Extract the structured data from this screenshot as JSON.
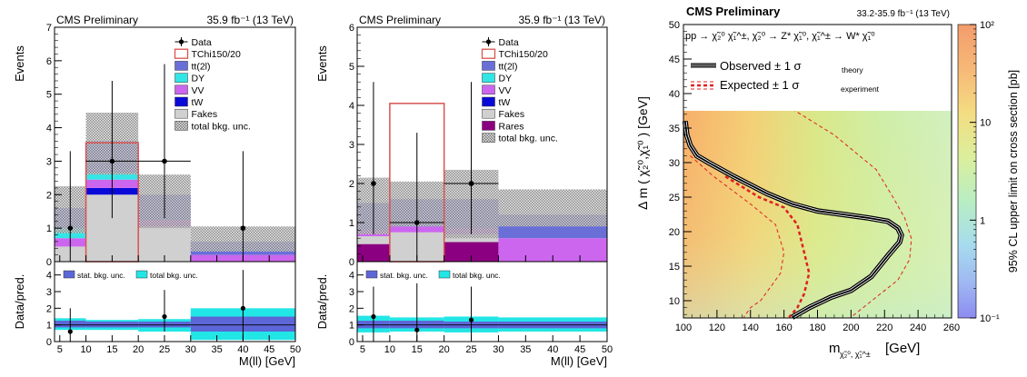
{
  "chart_data": [
    {
      "type": "bar",
      "panel": "left",
      "title": "CMS Preliminary",
      "lumi": "35.9 fb⁻¹ (13 TeV)",
      "xlabel": "M(ll) [GeV]",
      "ylabel": "Events",
      "ratio_ylabel": "Data/pred.",
      "xlim": [
        4,
        50
      ],
      "ylim": [
        0,
        7
      ],
      "ratio_ylim": [
        0,
        4.8
      ],
      "x_ticks": [
        5,
        10,
        15,
        20,
        25,
        30,
        35,
        40,
        45,
        50
      ],
      "y_ticks": [
        0,
        1,
        2,
        3,
        4,
        5,
        6,
        7
      ],
      "ratio_ticks": [
        0,
        1,
        2,
        3,
        4
      ],
      "bins": [
        [
          4,
          10
        ],
        [
          10,
          20
        ],
        [
          20,
          30
        ],
        [
          30,
          50
        ]
      ],
      "stack": [
        {
          "name": "Fakes",
          "color": "#d0d0d0",
          "values": [
            0.45,
            2.0,
            1.05,
            0.0
          ]
        },
        {
          "name": "tW",
          "color": "#0a0ad8",
          "values": [
            0.0,
            0.2,
            0.0,
            0.0
          ]
        },
        {
          "name": "VV",
          "color": "#cc66ee",
          "values": [
            0.25,
            0.25,
            0.2,
            0.2
          ]
        },
        {
          "name": "DY",
          "color": "#33e6e6",
          "values": [
            0.3,
            0.2,
            0.0,
            0.0
          ]
        },
        {
          "name": "tt(2l)",
          "color": "#6a6fd8",
          "values": [
            0.6,
            0.95,
            0.75,
            0.4
          ]
        }
      ],
      "signal": {
        "name": "TChi150/20",
        "color": "#d9534f",
        "values": [
          0.0,
          3.55,
          0.0,
          0.0
        ]
      },
      "total_unc": {
        "name": "total bkg. unc.",
        "low": [
          0.85,
          2.6,
          1.0,
          0.3
        ],
        "high": [
          2.25,
          4.45,
          2.6,
          1.05
        ]
      },
      "data": {
        "name": "Data",
        "x": [
          7,
          15,
          25,
          40
        ],
        "y": [
          1,
          3,
          3,
          1
        ],
        "yerr": [
          [
            1.0,
            2.3
          ],
          [
            1.7,
            2.4
          ],
          [
            1.7,
            2.9
          ],
          [
            1.0,
            2.3
          ]
        ],
        "xerr": [
          0,
          5,
          5,
          0
        ]
      },
      "ratio": {
        "x": [
          7,
          25,
          40
        ],
        "y": [
          0.6,
          1.5,
          2.0
        ],
        "yerr": [
          [
            0.6,
            1.4
          ],
          [
            0.9,
            1.6
          ],
          [
            2.0,
            2.3
          ]
        ],
        "stat_band": [
          [
            0.85,
            1.25
          ],
          [
            0.85,
            1.2
          ],
          [
            0.85,
            1.2
          ],
          [
            0.6,
            1.5
          ]
        ],
        "total_band": [
          [
            0.7,
            1.4
          ],
          [
            0.7,
            1.3
          ],
          [
            0.6,
            1.35
          ],
          [
            0.1,
            2.0
          ]
        ],
        "legend": [
          "stat. bkg. unc.",
          "total bkg. unc."
        ]
      }
    },
    {
      "type": "bar",
      "panel": "middle",
      "title": "CMS Preliminary",
      "lumi": "35.9 fb⁻¹ (13 TeV)",
      "xlabel": "M(ll) [GeV]",
      "ylabel": "Events",
      "ratio_ylabel": "Data/pred.",
      "xlim": [
        4,
        50
      ],
      "ylim": [
        0,
        6
      ],
      "ratio_ylim": [
        0,
        4.8
      ],
      "x_ticks": [
        5,
        10,
        15,
        20,
        25,
        30,
        35,
        40,
        45,
        50
      ],
      "y_ticks": [
        0,
        1,
        2,
        3,
        4,
        5,
        6
      ],
      "ratio_ticks": [
        0,
        1,
        2,
        3,
        4
      ],
      "bins": [
        [
          4,
          10
        ],
        [
          10,
          20
        ],
        [
          20,
          30
        ],
        [
          30,
          50
        ]
      ],
      "stack": [
        {
          "name": "Rares",
          "color": "#8b0080",
          "values": [
            0.45,
            0.0,
            0.5,
            0.0
          ]
        },
        {
          "name": "Fakes",
          "color": "#d0d0d0",
          "values": [
            0.2,
            0.75,
            0.2,
            0.0
          ]
        },
        {
          "name": "VV",
          "color": "#cc66ee",
          "values": [
            0.15,
            0.15,
            0.15,
            0.6
          ]
        },
        {
          "name": "tW",
          "color": "#0a0ad8",
          "values": [
            0.0,
            0.0,
            0.0,
            0.0
          ]
        },
        {
          "name": "DY",
          "color": "#33e6e6",
          "values": [
            0.0,
            0.0,
            0.0,
            0.0
          ]
        },
        {
          "name": "tt(2l)",
          "color": "#6a6fd8",
          "values": [
            0.7,
            0.7,
            0.75,
            0.6
          ]
        }
      ],
      "signal": {
        "name": "TChi150/20",
        "color": "#d9534f",
        "values": [
          0.0,
          4.05,
          0.0,
          0.0
        ]
      },
      "total_unc": {
        "name": "total bkg. unc.",
        "low": [
          0.7,
          0.9,
          0.6,
          0.9
        ],
        "high": [
          2.15,
          2.05,
          2.35,
          1.85
        ]
      },
      "data": {
        "name": "Data",
        "x": [
          7,
          15,
          25
        ],
        "y": [
          2,
          1,
          2
        ],
        "yerr": [
          [
            1.3,
            2.6
          ],
          [
            1.0,
            2.3
          ],
          [
            1.3,
            2.6
          ]
        ],
        "xerr": [
          0,
          5,
          5
        ]
      },
      "ratio": {
        "x": [
          7,
          15,
          25
        ],
        "y": [
          1.5,
          0.7,
          1.3
        ],
        "yerr": [
          [
            1.5,
            1.8
          ],
          [
            0.7,
            2.8
          ],
          [
            1.3,
            2.0
          ]
        ],
        "stat_band": [
          [
            0.8,
            1.25
          ],
          [
            0.8,
            1.25
          ],
          [
            0.8,
            1.2
          ],
          [
            0.8,
            1.2
          ]
        ],
        "total_band": [
          [
            0.55,
            1.55
          ],
          [
            0.6,
            1.45
          ],
          [
            0.55,
            1.5
          ],
          [
            0.6,
            1.45
          ]
        ],
        "legend": [
          "stat. bkg. unc.",
          "total bkg. unc."
        ]
      },
      "legend_extra": [
        "Rares"
      ]
    },
    {
      "type": "heatmap",
      "panel": "right",
      "title": "CMS Preliminary",
      "lumi": "33.2-35.9 fb⁻¹ (13 TeV)",
      "process": "pp → χ̃₂⁰ χ̃₁^±, χ̃₂⁰ → Z* χ̃₁⁰, χ̃₁^± → W* χ̃₁⁰",
      "xlabel": "m",
      "xlabel_sub": "χ̃₂⁰, χ̃₁^±",
      "xlabel_unit": "[GeV]",
      "ylabel": "Δ m ( χ̃₂⁰,χ̃₁⁰ ) [GeV]",
      "zlabel": "95% CL upper limit on cross section [pb]",
      "xlim": [
        100,
        260
      ],
      "ylim": [
        7.5,
        50
      ],
      "x_ticks": [
        100,
        120,
        140,
        160,
        180,
        200,
        220,
        240,
        260
      ],
      "y_ticks": [
        10,
        15,
        20,
        25,
        30,
        35,
        40,
        45,
        50
      ],
      "z_scale": "log",
      "zlim": [
        0.1,
        100
      ],
      "z_ticks": [
        "10⁻¹",
        "1",
        "10",
        "10²"
      ],
      "legend": {
        "observed": "Observed ± 1 σ",
        "observed_sub": "theory",
        "expected": "Expected ± 1 σ",
        "expected_sub": "experiment"
      },
      "observed": {
        "x": [
          101,
          102,
          104,
          108,
          115,
          130,
          150,
          165,
          180,
          195,
          210,
          222,
          228,
          230,
          229,
          222,
          212,
          200,
          188,
          175,
          165
        ],
        "y": [
          36,
          34,
          32.5,
          31,
          30,
          28,
          25.5,
          24,
          23,
          22.5,
          22,
          21.5,
          20.5,
          19.5,
          18.5,
          16.5,
          13.5,
          11.5,
          10.5,
          9,
          7.6
        ]
      },
      "expected": {
        "x": [
          125,
          145,
          160,
          168,
          172,
          175,
          172,
          168,
          163
        ],
        "y": [
          28,
          25,
          23.5,
          21,
          17,
          14,
          11,
          9,
          7.6
        ]
      },
      "expected_minus": {
        "x": [
          104,
          118,
          140,
          155,
          160,
          158,
          152,
          146,
          140,
          136
        ],
        "y": [
          31,
          28,
          24,
          21,
          17,
          14,
          12,
          10,
          9,
          7.6
        ]
      },
      "expected_plus": {
        "x": [
          130,
          150,
          190,
          215,
          225,
          232,
          236,
          235,
          228,
          215,
          200
        ],
        "y": [
          46,
          40,
          34,
          29,
          25,
          22,
          19,
          16,
          13,
          10.5,
          7.6
        ]
      }
    }
  ]
}
